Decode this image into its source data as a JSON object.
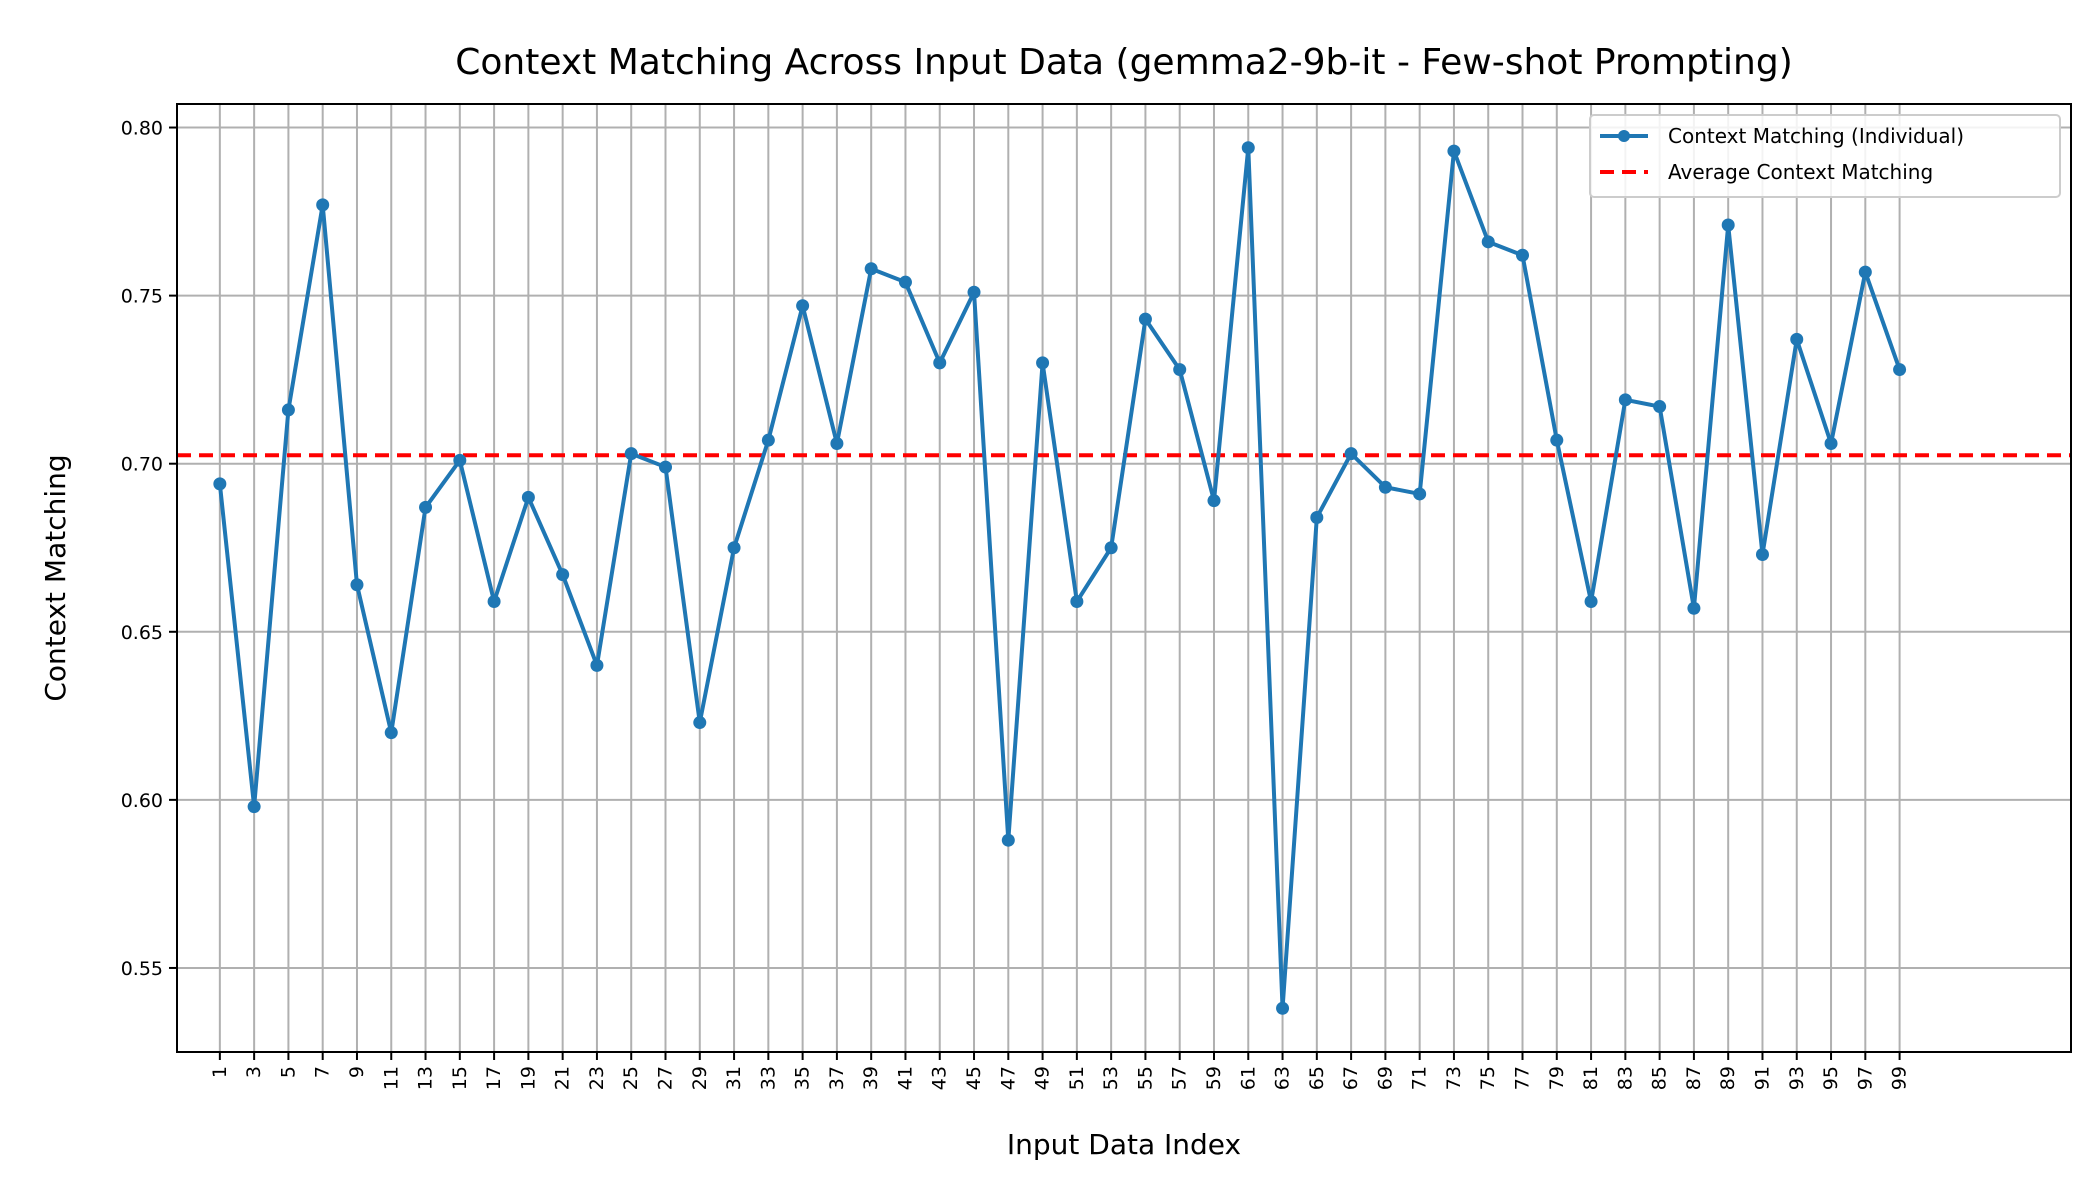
{
  "chart_data": {
    "type": "line",
    "title": "Context Matching Across Input Data (gemma2-9b-it - Few-shot Prompting)",
    "xlabel": "Input Data Index",
    "ylabel": "Context Matching",
    "x": [
      1,
      3,
      5,
      7,
      9,
      11,
      13,
      15,
      17,
      19,
      21,
      23,
      25,
      27,
      29,
      31,
      33,
      35,
      37,
      39,
      41,
      43,
      45,
      47,
      49,
      51,
      53,
      55,
      57,
      59,
      61,
      63,
      65,
      67,
      69,
      71,
      73,
      75,
      77,
      79,
      81,
      83,
      85,
      87,
      89,
      91,
      93,
      95,
      97,
      99
    ],
    "xticks": [
      "1",
      "3",
      "5",
      "7",
      "9",
      "11",
      "13",
      "15",
      "17",
      "19",
      "21",
      "23",
      "25",
      "27",
      "29",
      "31",
      "33",
      "35",
      "37",
      "39",
      "41",
      "43",
      "45",
      "47",
      "49",
      "51",
      "53",
      "55",
      "57",
      "59",
      "61",
      "63",
      "65",
      "67",
      "69",
      "71",
      "73",
      "75",
      "77",
      "79",
      "81",
      "83",
      "85",
      "87",
      "89",
      "91",
      "93",
      "95",
      "97",
      "99"
    ],
    "xlim": [
      -1.5,
      109
    ],
    "ylim": [
      0.525,
      0.807
    ],
    "yticks": [
      "0.55",
      "0.60",
      "0.65",
      "0.70",
      "0.75",
      "0.80"
    ],
    "ytick_values": [
      0.55,
      0.6,
      0.65,
      0.7,
      0.75,
      0.8
    ],
    "grid": true,
    "legend_position": "top-right",
    "series": [
      {
        "name": "Context Matching (Individual)",
        "color": "#1f77b4",
        "style": "solid-with-markers",
        "values": [
          0.694,
          0.598,
          0.716,
          0.777,
          0.664,
          0.62,
          0.687,
          0.701,
          0.659,
          0.69,
          0.667,
          0.64,
          0.703,
          0.699,
          0.623,
          0.675,
          0.707,
          0.747,
          0.706,
          0.758,
          0.754,
          0.73,
          0.751,
          0.588,
          0.73,
          0.659,
          0.675,
          0.743,
          0.728,
          0.689,
          0.794,
          0.538,
          0.684,
          0.703,
          0.693,
          0.691,
          0.793,
          0.766,
          0.762,
          0.707,
          0.659,
          0.719,
          0.717,
          0.657,
          0.771,
          0.673,
          0.737,
          0.706,
          0.757,
          0.728
        ]
      },
      {
        "name": "Average Context Matching",
        "color": "#ff0000",
        "style": "dashed",
        "value": 0.7025
      }
    ]
  }
}
